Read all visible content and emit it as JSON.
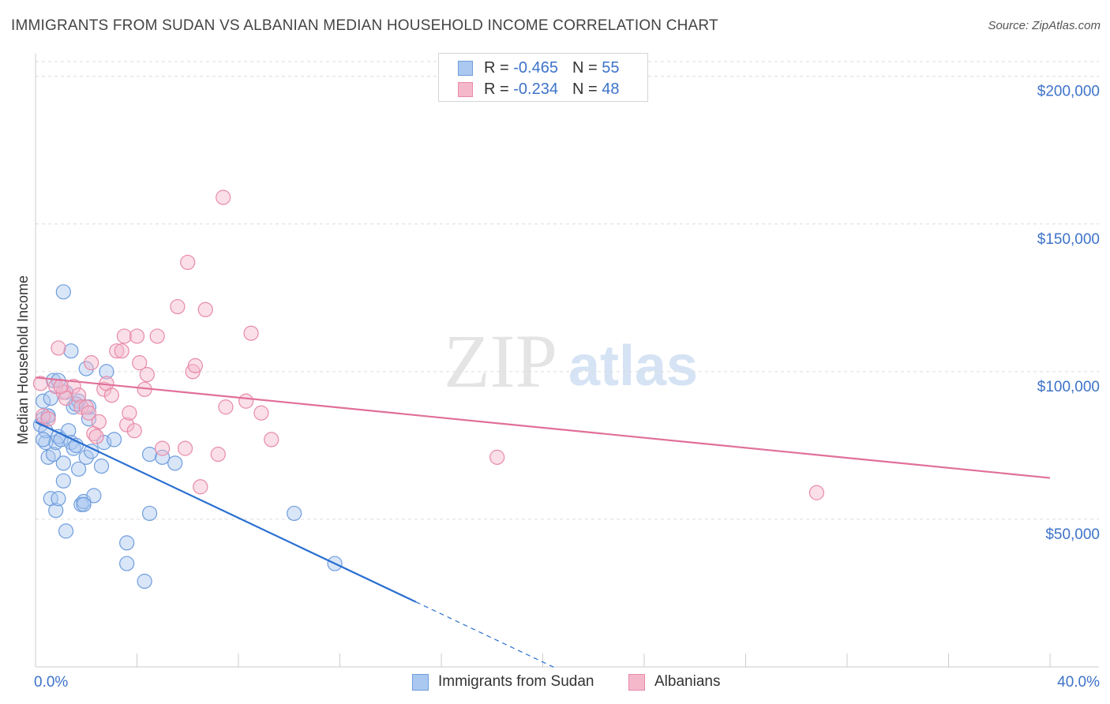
{
  "title": "IMMIGRANTS FROM SUDAN VS ALBANIAN MEDIAN HOUSEHOLD INCOME CORRELATION CHART",
  "source": "Source: ZipAtlas.com",
  "legend_top": [
    {
      "swatch_color": "#aac8f0",
      "r_label": "R =",
      "r_value": "-0.465",
      "n_label": "N =",
      "n_value": "55"
    },
    {
      "swatch_color": "#f5b8cb",
      "r_label": "R =",
      "r_value": "-0.234",
      "n_label": "N =",
      "n_value": "48"
    }
  ],
  "legend_bottom": [
    {
      "label": "Immigrants from Sudan",
      "color": "#aac8f0"
    },
    {
      "label": "Albanians",
      "color": "#f5b8cb"
    }
  ],
  "watermark": {
    "zip": "ZIP",
    "atlas": "atlas"
  },
  "chart_data": {
    "type": "scatter",
    "title": "IMMIGRANTS FROM SUDAN VS ALBANIAN MEDIAN HOUSEHOLD INCOME CORRELATION CHART",
    "xlabel": "",
    "ylabel": "Median Household Income",
    "xlim": [
      0,
      40
    ],
    "ylim": [
      0,
      205000
    ],
    "x_tick_labels": [
      {
        "value": 0,
        "label": "0.0%"
      },
      {
        "value": 40,
        "label": "40.0%"
      }
    ],
    "y_tick_labels": [
      {
        "value": 50000,
        "label": "$50,000"
      },
      {
        "value": 100000,
        "label": "$100,000"
      },
      {
        "value": 150000,
        "label": "$150,000"
      },
      {
        "value": 200000,
        "label": "$200,000"
      }
    ],
    "series": [
      {
        "name": "Immigrants from Sudan",
        "color": "#aac8f0",
        "stroke": "#6f9ddd",
        "line_color": "#2a6fd1",
        "trend": {
          "x0": 0,
          "y0": 83000,
          "x1": 15,
          "y1": 22000,
          "x_dash_end": 20.5
        },
        "points": [
          [
            0.2,
            82000
          ],
          [
            0.3,
            90000
          ],
          [
            0.3,
            84000
          ],
          [
            0.4,
            76000
          ],
          [
            0.4,
            80000
          ],
          [
            0.5,
            85000
          ],
          [
            0.5,
            71000
          ],
          [
            0.6,
            91000
          ],
          [
            0.6,
            57000
          ],
          [
            0.7,
            72000
          ],
          [
            0.7,
            97000
          ],
          [
            0.8,
            76000
          ],
          [
            0.8,
            53000
          ],
          [
            0.9,
            78000
          ],
          [
            0.9,
            57000
          ],
          [
            1.0,
            77000
          ],
          [
            1.1,
            69000
          ],
          [
            1.1,
            127000
          ],
          [
            1.1,
            63000
          ],
          [
            1.2,
            46000
          ],
          [
            1.2,
            93000
          ],
          [
            1.3,
            80000
          ],
          [
            1.4,
            107000
          ],
          [
            1.4,
            76000
          ],
          [
            1.5,
            88000
          ],
          [
            1.5,
            74000
          ],
          [
            1.6,
            75000
          ],
          [
            1.7,
            90000
          ],
          [
            1.7,
            67000
          ],
          [
            1.8,
            55000
          ],
          [
            1.9,
            56000
          ],
          [
            2.0,
            71000
          ],
          [
            2.0,
            101000
          ],
          [
            2.1,
            84000
          ],
          [
            2.1,
            88000
          ],
          [
            2.2,
            73000
          ],
          [
            2.3,
            58000
          ],
          [
            2.6,
            68000
          ],
          [
            2.7,
            76000
          ],
          [
            2.8,
            100000
          ],
          [
            3.1,
            77000
          ],
          [
            3.6,
            42000
          ],
          [
            3.6,
            35000
          ],
          [
            4.3,
            29000
          ],
          [
            4.5,
            52000
          ],
          [
            4.5,
            72000
          ],
          [
            5.0,
            71000
          ],
          [
            5.5,
            69000
          ],
          [
            10.2,
            52000
          ],
          [
            11.8,
            35000
          ],
          [
            0.9,
            97000
          ],
          [
            1.6,
            89000
          ],
          [
            0.5,
            85000
          ],
          [
            1.9,
            55000
          ],
          [
            0.3,
            77000
          ]
        ]
      },
      {
        "name": "Albanians",
        "color": "#f5b8cb",
        "stroke": "#e88aa8",
        "line_color": "#e0709a",
        "trend": {
          "x0": 0,
          "y0": 98000,
          "x1": 40,
          "y1": 64000
        },
        "points": [
          [
            0.2,
            96000
          ],
          [
            0.3,
            85000
          ],
          [
            0.5,
            84000
          ],
          [
            0.8,
            95000
          ],
          [
            0.9,
            108000
          ],
          [
            1.1,
            93000
          ],
          [
            1.2,
            91000
          ],
          [
            1.5,
            95000
          ],
          [
            1.7,
            92000
          ],
          [
            1.8,
            88000
          ],
          [
            2.0,
            88000
          ],
          [
            2.2,
            103000
          ],
          [
            2.3,
            79000
          ],
          [
            2.4,
            78000
          ],
          [
            2.5,
            83000
          ],
          [
            2.7,
            94000
          ],
          [
            2.8,
            96000
          ],
          [
            3.0,
            92000
          ],
          [
            3.2,
            107000
          ],
          [
            3.4,
            107000
          ],
          [
            3.5,
            112000
          ],
          [
            3.6,
            82000
          ],
          [
            3.7,
            86000
          ],
          [
            3.9,
            80000
          ],
          [
            4.0,
            112000
          ],
          [
            4.1,
            103000
          ],
          [
            4.3,
            94000
          ],
          [
            4.4,
            99000
          ],
          [
            4.8,
            112000
          ],
          [
            5.0,
            74000
          ],
          [
            5.6,
            122000
          ],
          [
            5.9,
            74000
          ],
          [
            6.0,
            137000
          ],
          [
            6.2,
            100000
          ],
          [
            6.3,
            102000
          ],
          [
            6.5,
            61000
          ],
          [
            6.7,
            121000
          ],
          [
            7.2,
            72000
          ],
          [
            7.5,
            88000
          ],
          [
            8.3,
            90000
          ],
          [
            8.5,
            113000
          ],
          [
            8.9,
            86000
          ],
          [
            9.3,
            77000
          ],
          [
            7.4,
            159000
          ],
          [
            18.2,
            71000
          ],
          [
            30.8,
            59000
          ],
          [
            1.0,
            95000
          ],
          [
            2.1,
            86000
          ]
        ]
      }
    ]
  }
}
